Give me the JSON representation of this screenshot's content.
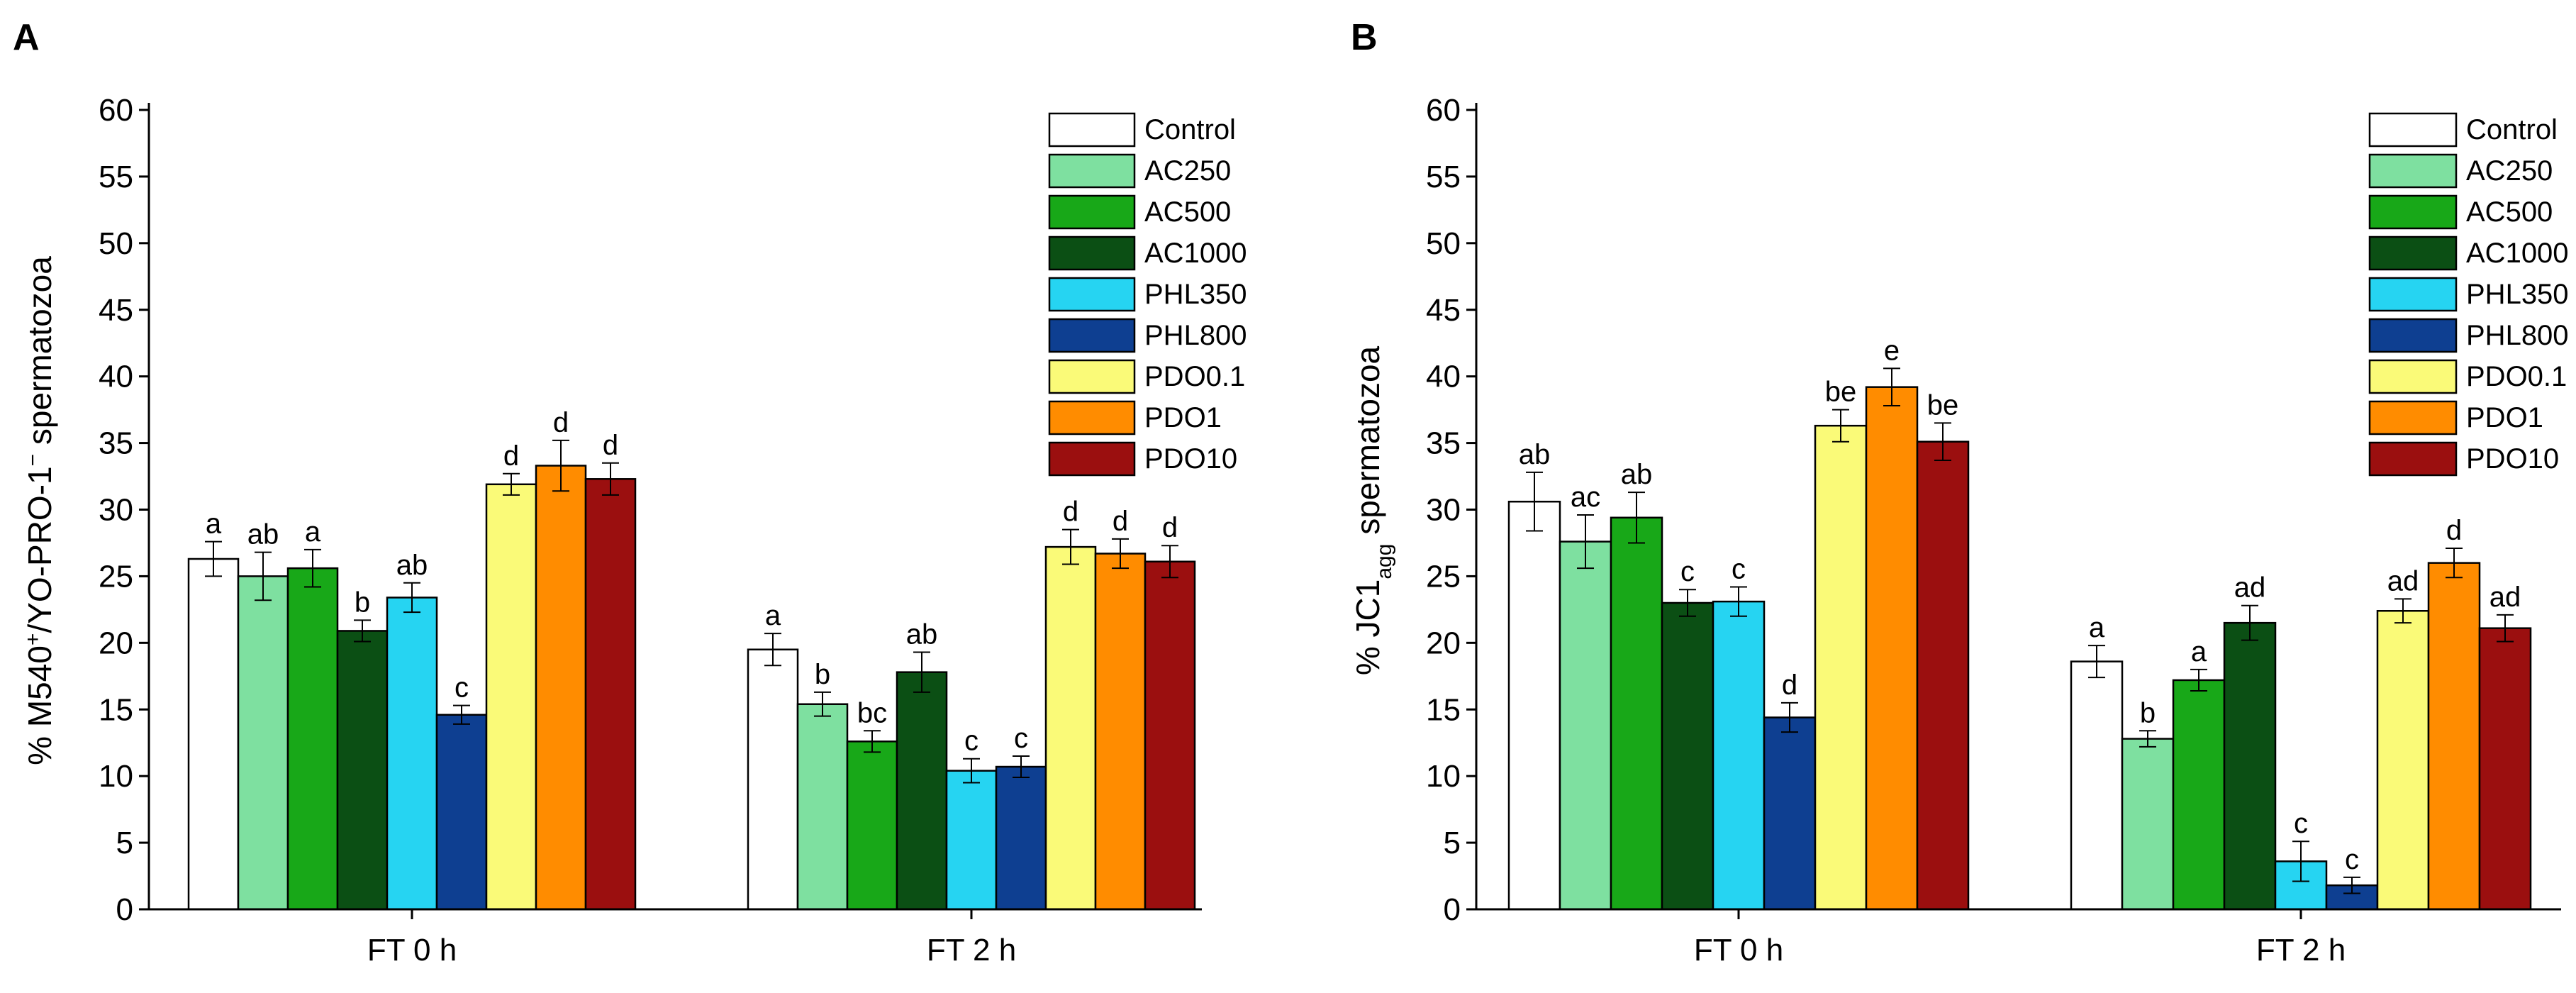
{
  "chart_data": [
    {
      "type": "bar",
      "panel": "A",
      "ylabel_parts": [
        "% M540",
        "+",
        "/YO-PRO-1",
        "−",
        " spermatozoa"
      ],
      "ylim": [
        0,
        60
      ],
      "yticks": [
        0,
        5,
        10,
        15,
        20,
        25,
        30,
        35,
        40,
        45,
        50,
        55,
        60
      ],
      "categories": [
        "FT 0 h",
        "FT 2 h"
      ],
      "legend_position": "top-right",
      "series": [
        {
          "name": "Control",
          "color": "#ffffff",
          "values": [
            26.3,
            19.5
          ],
          "errors": [
            1.3,
            1.2
          ],
          "labels": [
            "a",
            "a"
          ]
        },
        {
          "name": "AC250",
          "color": "#7ee0a0",
          "values": [
            25.0,
            15.4
          ],
          "errors": [
            1.8,
            0.9
          ],
          "labels": [
            "ab",
            "b"
          ]
        },
        {
          "name": "AC500",
          "color": "#18a818",
          "values": [
            25.6,
            12.6
          ],
          "errors": [
            1.4,
            0.8
          ],
          "labels": [
            "a",
            "bc"
          ]
        },
        {
          "name": "AC1000",
          "color": "#0b4f14",
          "values": [
            20.9,
            17.8
          ],
          "errors": [
            0.8,
            1.5
          ],
          "labels": [
            "b",
            "ab"
          ]
        },
        {
          "name": "PHL350",
          "color": "#26d4f2",
          "values": [
            23.4,
            10.4
          ],
          "errors": [
            1.1,
            0.9
          ],
          "labels": [
            "ab",
            "c"
          ]
        },
        {
          "name": "PHL800",
          "color": "#0e3f91",
          "values": [
            14.6,
            10.7
          ],
          "errors": [
            0.7,
            0.8
          ],
          "labels": [
            "c",
            "c"
          ]
        },
        {
          "name": "PDO0.1",
          "color": "#fafa78",
          "values": [
            31.9,
            27.2
          ],
          "errors": [
            0.8,
            1.3
          ],
          "labels": [
            "d",
            "d"
          ]
        },
        {
          "name": "PDO1",
          "color": "#ff8c00",
          "values": [
            33.3,
            26.7
          ],
          "errors": [
            1.9,
            1.1
          ],
          "labels": [
            "d",
            "d"
          ]
        },
        {
          "name": "PDO10",
          "color": "#9b0f0f",
          "values": [
            32.3,
            26.1
          ],
          "errors": [
            1.2,
            1.2
          ],
          "labels": [
            "d",
            "d"
          ]
        }
      ]
    },
    {
      "type": "bar",
      "panel": "B",
      "ylabel_parts": [
        "% JC1",
        "agg",
        " spermatozoa"
      ],
      "ylim": [
        0,
        60
      ],
      "yticks": [
        0,
        5,
        10,
        15,
        20,
        25,
        30,
        35,
        40,
        45,
        50,
        55,
        60
      ],
      "categories": [
        "FT 0 h",
        "FT 2 h"
      ],
      "legend_position": "top-right",
      "series": [
        {
          "name": "Control",
          "color": "#ffffff",
          "values": [
            30.6,
            18.6
          ],
          "errors": [
            2.2,
            1.2
          ],
          "labels": [
            "ab",
            "a"
          ]
        },
        {
          "name": "AC250",
          "color": "#7ee0a0",
          "values": [
            27.6,
            12.8
          ],
          "errors": [
            2.0,
            0.6
          ],
          "labels": [
            "ac",
            "b"
          ]
        },
        {
          "name": "AC500",
          "color": "#18a818",
          "values": [
            29.4,
            17.2
          ],
          "errors": [
            1.9,
            0.8
          ],
          "labels": [
            "ab",
            "a"
          ]
        },
        {
          "name": "AC1000",
          "color": "#0b4f14",
          "values": [
            23.0,
            21.5
          ],
          "errors": [
            1.0,
            1.3
          ],
          "labels": [
            "c",
            "ad"
          ]
        },
        {
          "name": "PHL350",
          "color": "#26d4f2",
          "values": [
            23.1,
            3.6
          ],
          "errors": [
            1.1,
            1.5
          ],
          "labels": [
            "c",
            "c"
          ]
        },
        {
          "name": "PHL800",
          "color": "#0e3f91",
          "values": [
            14.4,
            1.8
          ],
          "errors": [
            1.1,
            0.6
          ],
          "labels": [
            "d",
            "c"
          ]
        },
        {
          "name": "PDO0.1",
          "color": "#fafa78",
          "values": [
            36.3,
            22.4
          ],
          "errors": [
            1.2,
            0.9
          ],
          "labels": [
            "be",
            "ad"
          ]
        },
        {
          "name": "PDO1",
          "color": "#ff8c00",
          "values": [
            39.2,
            26.0
          ],
          "errors": [
            1.4,
            1.1
          ],
          "labels": [
            "e",
            "d"
          ]
        },
        {
          "name": "PDO10",
          "color": "#9b0f0f",
          "values": [
            35.1,
            21.1
          ],
          "errors": [
            1.4,
            1.0
          ],
          "labels": [
            "be",
            "ad"
          ]
        }
      ]
    }
  ]
}
